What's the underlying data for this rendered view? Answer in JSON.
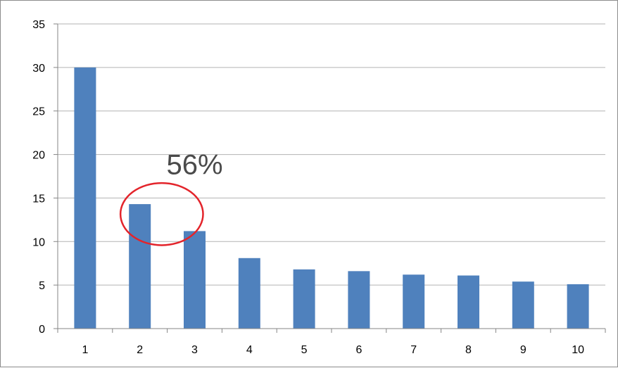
{
  "chart_data": {
    "type": "bar",
    "categories": [
      "1",
      "2",
      "3",
      "4",
      "5",
      "6",
      "7",
      "8",
      "9",
      "10"
    ],
    "values": [
      30,
      14.3,
      11.2,
      8.1,
      6.8,
      6.6,
      6.2,
      6.1,
      5.4,
      5.1
    ],
    "ylim": [
      0,
      35
    ],
    "yticks": [
      "0",
      "5",
      "10",
      "15",
      "20",
      "25",
      "30",
      "35"
    ],
    "grid": true,
    "legend": "none",
    "bar_color": "#4f81bd",
    "annotation": {
      "text": "56%",
      "highlight_categories": [
        "2",
        "3"
      ],
      "highlight_color": "#e3242b"
    }
  }
}
